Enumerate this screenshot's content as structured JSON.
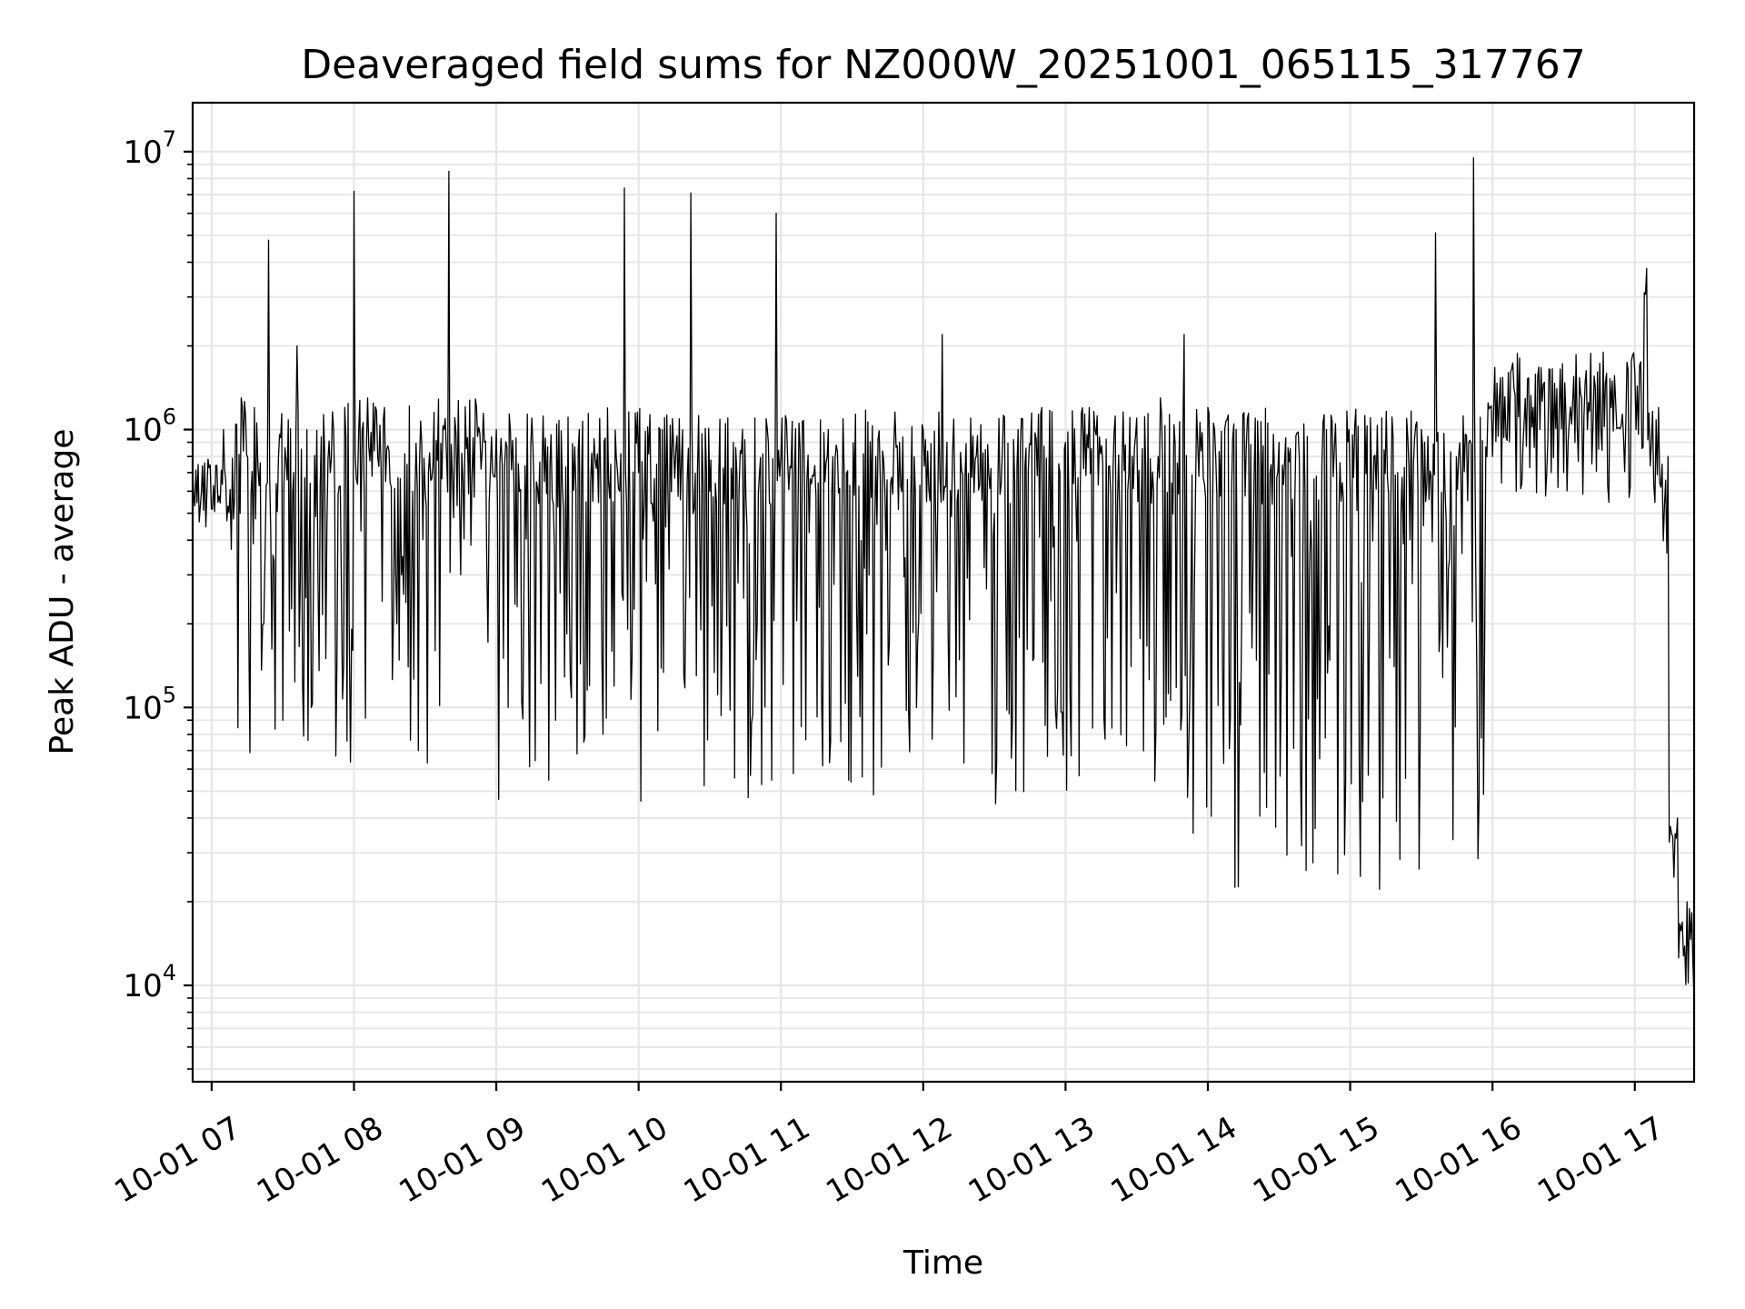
{
  "chart_data": {
    "type": "line",
    "title": "Deaveraged field sums for NZ000W_20251001_065115_317767",
    "xlabel": "Time",
    "ylabel": "Peak ADU - average",
    "x_scale": "time",
    "y_scale": "log",
    "xlim": [
      "2025-10-01 06:52",
      "2025-10-01 17:25"
    ],
    "ylim": [
      4500,
      15000000
    ],
    "x_ticks": [
      "10-01 07",
      "10-01 08",
      "10-01 09",
      "10-01 10",
      "10-01 11",
      "10-01 12",
      "10-01 13",
      "10-01 14",
      "10-01 15",
      "10-01 16",
      "10-01 17"
    ],
    "y_ticks": [
      {
        "value": 10000,
        "base": "10",
        "exp": "4"
      },
      {
        "value": 100000,
        "base": "10",
        "exp": "5"
      },
      {
        "value": 1000000,
        "base": "10",
        "exp": "6"
      },
      {
        "value": 10000000,
        "base": "10",
        "exp": "7"
      }
    ],
    "grid": true,
    "legend": "none",
    "line_color": "#000000",
    "series": [
      {
        "x": [
          "2025-10-01 06:52",
          "2025-10-01 06:58",
          "2025-10-01 07:05",
          "2025-10-01 07:12",
          "2025-10-01 07:18",
          "2025-10-01 07:22",
          "2025-10-01 07:24",
          "2025-10-01 07:30",
          "2025-10-01 07:36",
          "2025-10-01 07:42",
          "2025-10-01 07:50",
          "2025-10-01 07:58",
          "2025-10-01 08:00",
          "2025-10-01 08:02",
          "2025-10-01 08:10",
          "2025-10-01 08:20",
          "2025-10-01 08:30",
          "2025-10-01 08:38",
          "2025-10-01 08:40",
          "2025-10-01 08:45",
          "2025-10-01 08:55",
          "2025-10-01 09:00",
          "2025-10-01 09:05",
          "2025-10-01 09:15",
          "2025-10-01 09:25",
          "2025-10-01 09:35",
          "2025-10-01 09:45",
          "2025-10-01 09:52",
          "2025-10-01 09:54",
          "2025-10-01 10:00",
          "2025-10-01 10:10",
          "2025-10-01 10:20",
          "2025-10-01 10:22",
          "2025-10-01 10:30",
          "2025-10-01 10:40",
          "2025-10-01 10:50",
          "2025-10-01 10:58",
          "2025-10-01 11:00",
          "2025-10-01 11:10",
          "2025-10-01 11:20",
          "2025-10-01 11:30",
          "2025-10-01 11:40",
          "2025-10-01 11:50",
          "2025-10-01 12:00",
          "2025-10-01 12:08",
          "2025-10-01 12:10",
          "2025-10-01 12:20",
          "2025-10-01 12:30",
          "2025-10-01 12:40",
          "2025-10-01 12:50",
          "2025-10-01 13:00",
          "2025-10-01 13:10",
          "2025-10-01 13:20",
          "2025-10-01 13:30",
          "2025-10-01 13:40",
          "2025-10-01 13:50",
          "2025-10-01 14:00",
          "2025-10-01 14:10",
          "2025-10-01 14:20",
          "2025-10-01 14:30",
          "2025-10-01 14:40",
          "2025-10-01 14:50",
          "2025-10-01 15:00",
          "2025-10-01 15:10",
          "2025-10-01 15:20",
          "2025-10-01 15:30",
          "2025-10-01 15:36",
          "2025-10-01 15:40",
          "2025-10-01 15:50",
          "2025-10-01 15:52",
          "2025-10-01 16:00",
          "2025-10-01 16:10",
          "2025-10-01 16:20",
          "2025-10-01 16:30",
          "2025-10-01 16:40",
          "2025-10-01 16:50",
          "2025-10-01 17:00",
          "2025-10-01 17:05",
          "2025-10-01 17:10",
          "2025-10-01 17:14",
          "2025-10-01 17:18",
          "2025-10-01 17:22",
          "2025-10-01 17:25"
        ],
        "y": [
          700000,
          600000,
          1000000,
          500000,
          1200000,
          200000,
          4800000,
          90000,
          2000000,
          100000,
          700000,
          200000,
          7200000,
          1000000,
          800000,
          300000,
          600000,
          1000000,
          8500000,
          300000,
          900000,
          1000000,
          100000,
          1100000,
          90000,
          1000000,
          80000,
          600000,
          7400000,
          700000,
          1000000,
          300000,
          7100000,
          600000,
          900000,
          200000,
          6000000,
          800000,
          600000,
          1000000,
          300000,
          800000,
          900000,
          1000000,
          2200000,
          900000,
          1100000,
          500000,
          1000000,
          1200000,
          900000,
          1200000,
          700000,
          1100000,
          1300000,
          2200000,
          1200000,
          600000,
          1100000,
          900000,
          300000,
          1000000,
          600000,
          800000,
          700000,
          1000000,
          5100000,
          600000,
          900000,
          9500000,
          800000,
          600000,
          1000000,
          700000,
          1000000,
          1200000,
          1600000,
          3800000,
          1200000,
          800000,
          40000,
          20000,
          9000
        ]
      }
    ]
  }
}
